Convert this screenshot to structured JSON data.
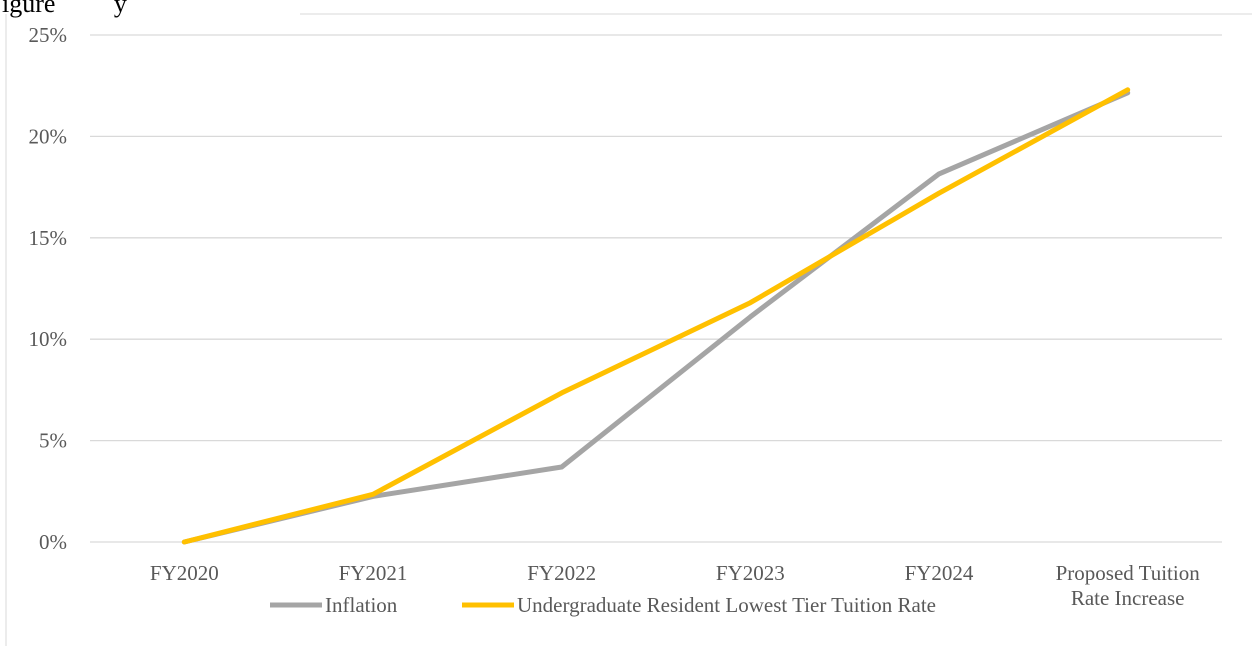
{
  "header_text": "igure         y",
  "chart_data": {
    "type": "line",
    "title": "",
    "xlabel": "",
    "ylabel": "",
    "categories": [
      "FY2020",
      "FY2021",
      "FY2022",
      "FY2023",
      "FY2024",
      "Proposed Tuition Rate Increase"
    ],
    "category_lines": [
      [
        "FY2020"
      ],
      [
        "FY2021"
      ],
      [
        "FY2022"
      ],
      [
        "FY2023"
      ],
      [
        "FY2024"
      ],
      [
        "Proposed Tuition",
        "Rate Increase"
      ]
    ],
    "ylim": [
      0,
      25
    ],
    "yticks": [
      0,
      5,
      10,
      15,
      20,
      25
    ],
    "ytick_labels": [
      "0%",
      "5%",
      "10%",
      "15%",
      "20%",
      "25%"
    ],
    "grid": true,
    "legend_position": "bottom",
    "series": [
      {
        "name": "Inflation",
        "color": "#a5a5a5",
        "values": [
          0,
          2.25,
          3.7,
          11.1,
          18.15,
          22.15
        ]
      },
      {
        "name": "Undergraduate Resident Lowest Tier Tuition Rate",
        "color": "#ffc000",
        "values": [
          0,
          2.35,
          7.35,
          11.8,
          17.2,
          22.3
        ]
      }
    ]
  }
}
